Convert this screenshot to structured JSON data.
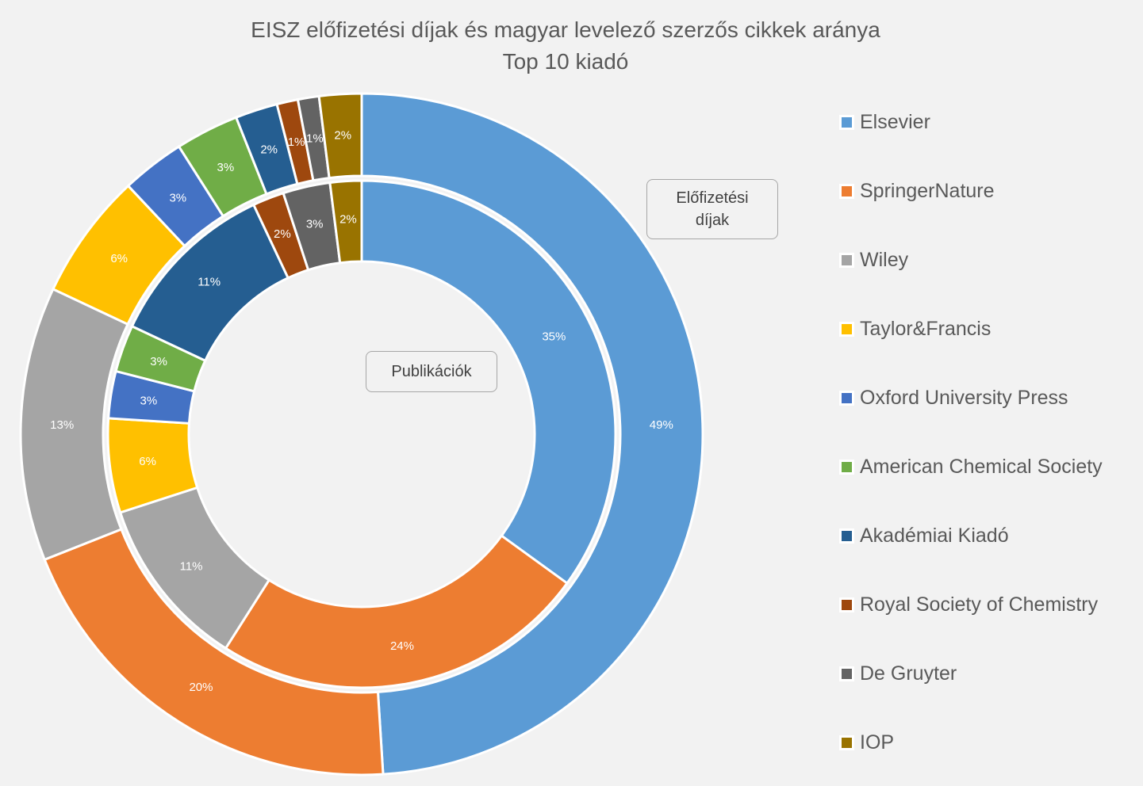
{
  "title": {
    "line1": "EISZ előfizetési díjak és magyar levelező szerzős cikkek aránya",
    "line2": "Top 10 kiadó"
  },
  "callouts": {
    "outer": "Előfizetési díjak",
    "inner": "Publikációk"
  },
  "legend": [
    {
      "label": "Elsevier",
      "color": "#5b9bd5"
    },
    {
      "label": "SpringerNature",
      "color": "#ed7d31"
    },
    {
      "label": "Wiley",
      "color": "#a5a5a5"
    },
    {
      "label": "Taylor&Francis",
      "color": "#ffc000"
    },
    {
      "label": "Oxford University Press",
      "color": "#4472c4"
    },
    {
      "label": "American Chemical Society",
      "color": "#70ad47"
    },
    {
      "label": "Akadémiai Kiadó",
      "color": "#255e91"
    },
    {
      "label": "Royal Society of Chemistry",
      "color": "#9e480e"
    },
    {
      "label": "De Gruyter",
      "color": "#636363"
    },
    {
      "label": "IOP",
      "color": "#997300"
    }
  ],
  "chart_data": {
    "type": "doughnut",
    "title": "EISZ előfizetési díjak és magyar levelező szerzős cikkek aránya — Top 10 kiadó",
    "categories": [
      "Elsevier",
      "SpringerNature",
      "Wiley",
      "Taylor&Francis",
      "Oxford University Press",
      "American Chemical Society",
      "Akadémiai Kiadó",
      "Royal Society of Chemistry",
      "De Gruyter",
      "IOP"
    ],
    "series": [
      {
        "name": "Előfizetési díjak",
        "ring": "outer",
        "values": [
          49,
          20,
          13,
          6,
          3,
          3,
          2,
          1,
          1,
          2
        ],
        "labels": [
          "49%",
          "20%",
          "13%",
          "6%",
          "3%",
          "3%",
          "2%",
          "1%",
          "1%",
          "2%"
        ]
      },
      {
        "name": "Publikációk",
        "ring": "inner",
        "values": [
          35,
          24,
          11,
          6,
          3,
          3,
          11,
          2,
          3,
          2
        ],
        "labels": [
          "35%",
          "24%",
          "11%",
          "6%",
          "3%",
          "3%",
          "11%",
          "2%",
          "3%",
          "2%"
        ]
      }
    ],
    "colors": [
      "#5b9bd5",
      "#ed7d31",
      "#a5a5a5",
      "#ffc000",
      "#4472c4",
      "#70ad47",
      "#255e91",
      "#9e480e",
      "#636363",
      "#997300"
    ],
    "legend_position": "right",
    "unit": "%"
  }
}
